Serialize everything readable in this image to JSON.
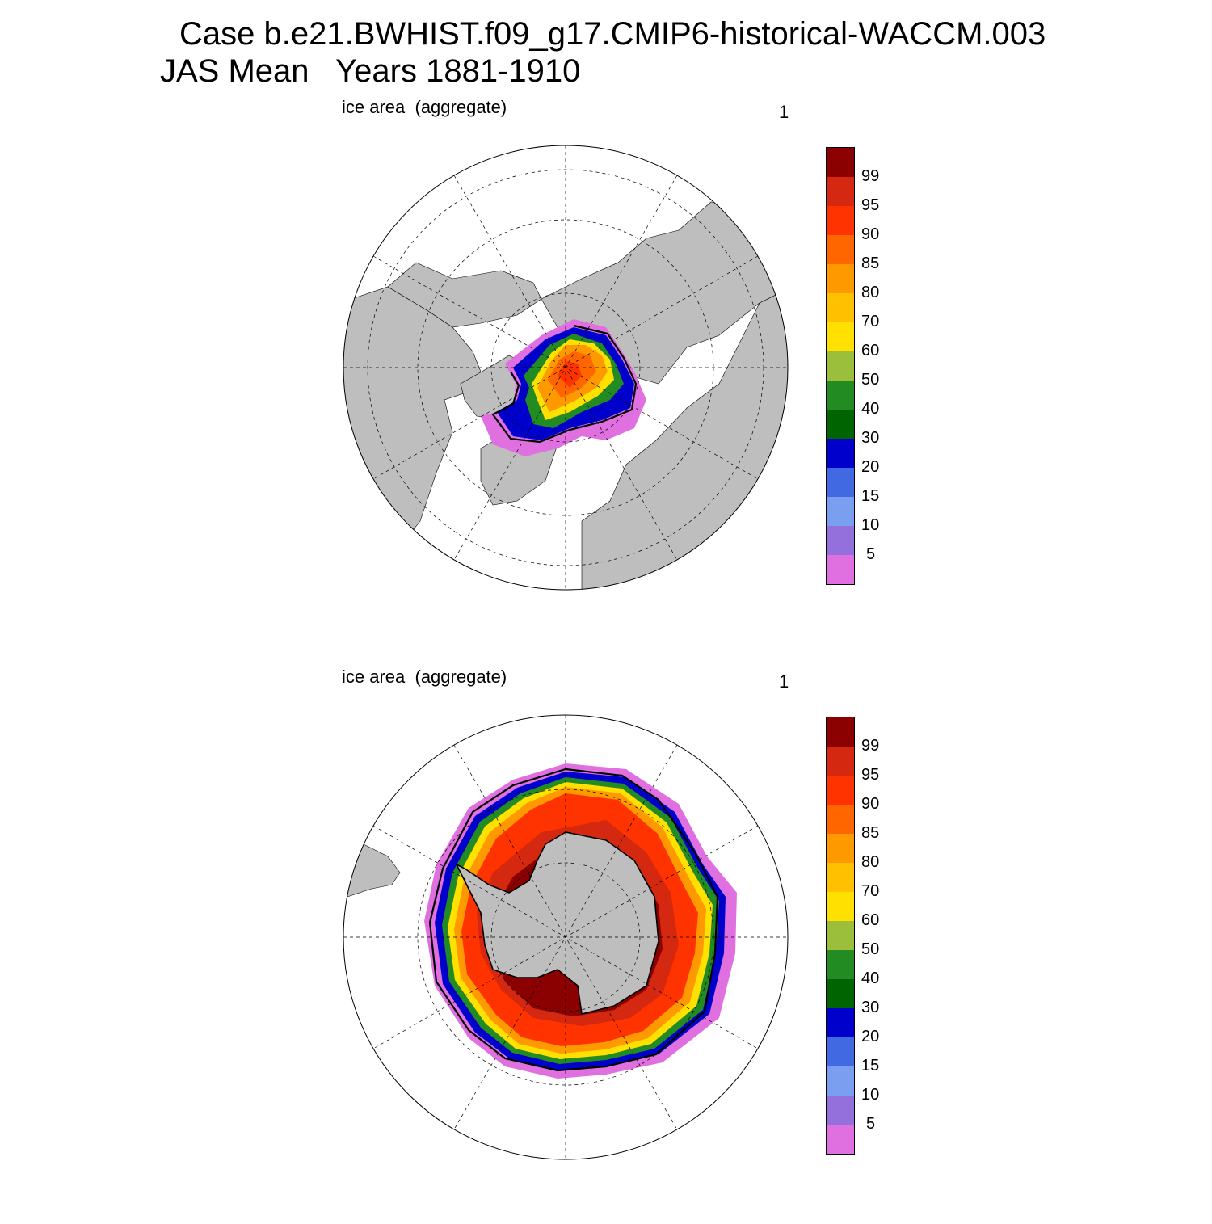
{
  "header": {
    "line1": "Case b.e21.BWHIST.f09_g17.CMIP6-historical-WACCM.003",
    "line2": "JAS Mean   Years 1881-1910"
  },
  "colors": {
    "land": "#bebebe",
    "ocean": "#ffffff",
    "contour": "#000000"
  },
  "colorbar": {
    "colors": [
      "#8b0000",
      "#d42810",
      "#ff3300",
      "#ff6600",
      "#ff9900",
      "#ffc000",
      "#ffe000",
      "#9bbf3a",
      "#228b22",
      "#006400",
      "#0000cd",
      "#4169e1",
      "#7b9ff0",
      "#9370db",
      "#e070e0"
    ],
    "labels": [
      "99",
      "95",
      "90",
      "85",
      "80",
      "70",
      "60",
      "50",
      "40",
      "30",
      "20",
      "15",
      "10",
      "5"
    ]
  },
  "panels": [
    {
      "id": "nh",
      "hemisphere": "north",
      "left_label": "ice area  (aggregate)",
      "right_label": "1"
    },
    {
      "id": "sh",
      "hemisphere": "south",
      "left_label": "ice area  (aggregate)",
      "right_label": "1"
    }
  ]
}
